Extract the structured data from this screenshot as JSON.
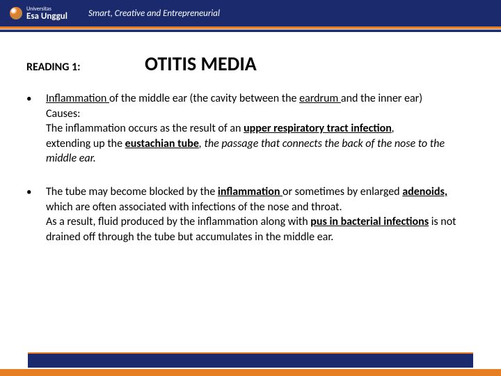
{
  "header": {
    "logo_uni": "Universitas",
    "logo_name": "Esa Unggul",
    "tagline": "Smart, Creative and Entrepreneurial"
  },
  "title": {
    "reading_label": "READING 1:",
    "main": "OTITIS MEDIA"
  },
  "bullets": [
    {
      "segments": [
        {
          "t": "Inflammation ",
          "u": true
        },
        {
          "t": "of the middle ear (the cavity between the "
        },
        {
          "t": "eardrum ",
          "u": true
        },
        {
          "t": "and the inner ear)\nCauses:\nThe inflammation occurs as the result of  an "
        },
        {
          "t": "upper respiratory tract infection",
          "u": true,
          "b": true
        },
        {
          "t": ",",
          "i": true
        },
        {
          "t": "\nextending up the "
        },
        {
          "t": "eustachian tube",
          "u": true,
          "b": true
        },
        {
          "t": ", the passage that connects the back of the nose to the middle ear.",
          "i": true
        }
      ]
    },
    {
      "segments": [
        {
          "t": "The tube may become blocked by the "
        },
        {
          "t": "inflammation ",
          "u": true,
          "b": true
        },
        {
          "t": "or sometimes by enlarged "
        },
        {
          "t": "adenoids,",
          "u": true,
          "b": true
        },
        {
          "t": " which are often associated with infections of the nose and throat.\nAs a result, fluid produced by the inflammation along with "
        },
        {
          "t": "pus in bacterial infections",
          "u": true,
          "b": true
        },
        {
          "t": "  is not drained off through the tube but accumulates in the middle ear."
        }
      ]
    }
  ],
  "colors": {
    "navy": "#1a2a6c",
    "orange": "#e67e22",
    "bg": "#ffffff"
  }
}
